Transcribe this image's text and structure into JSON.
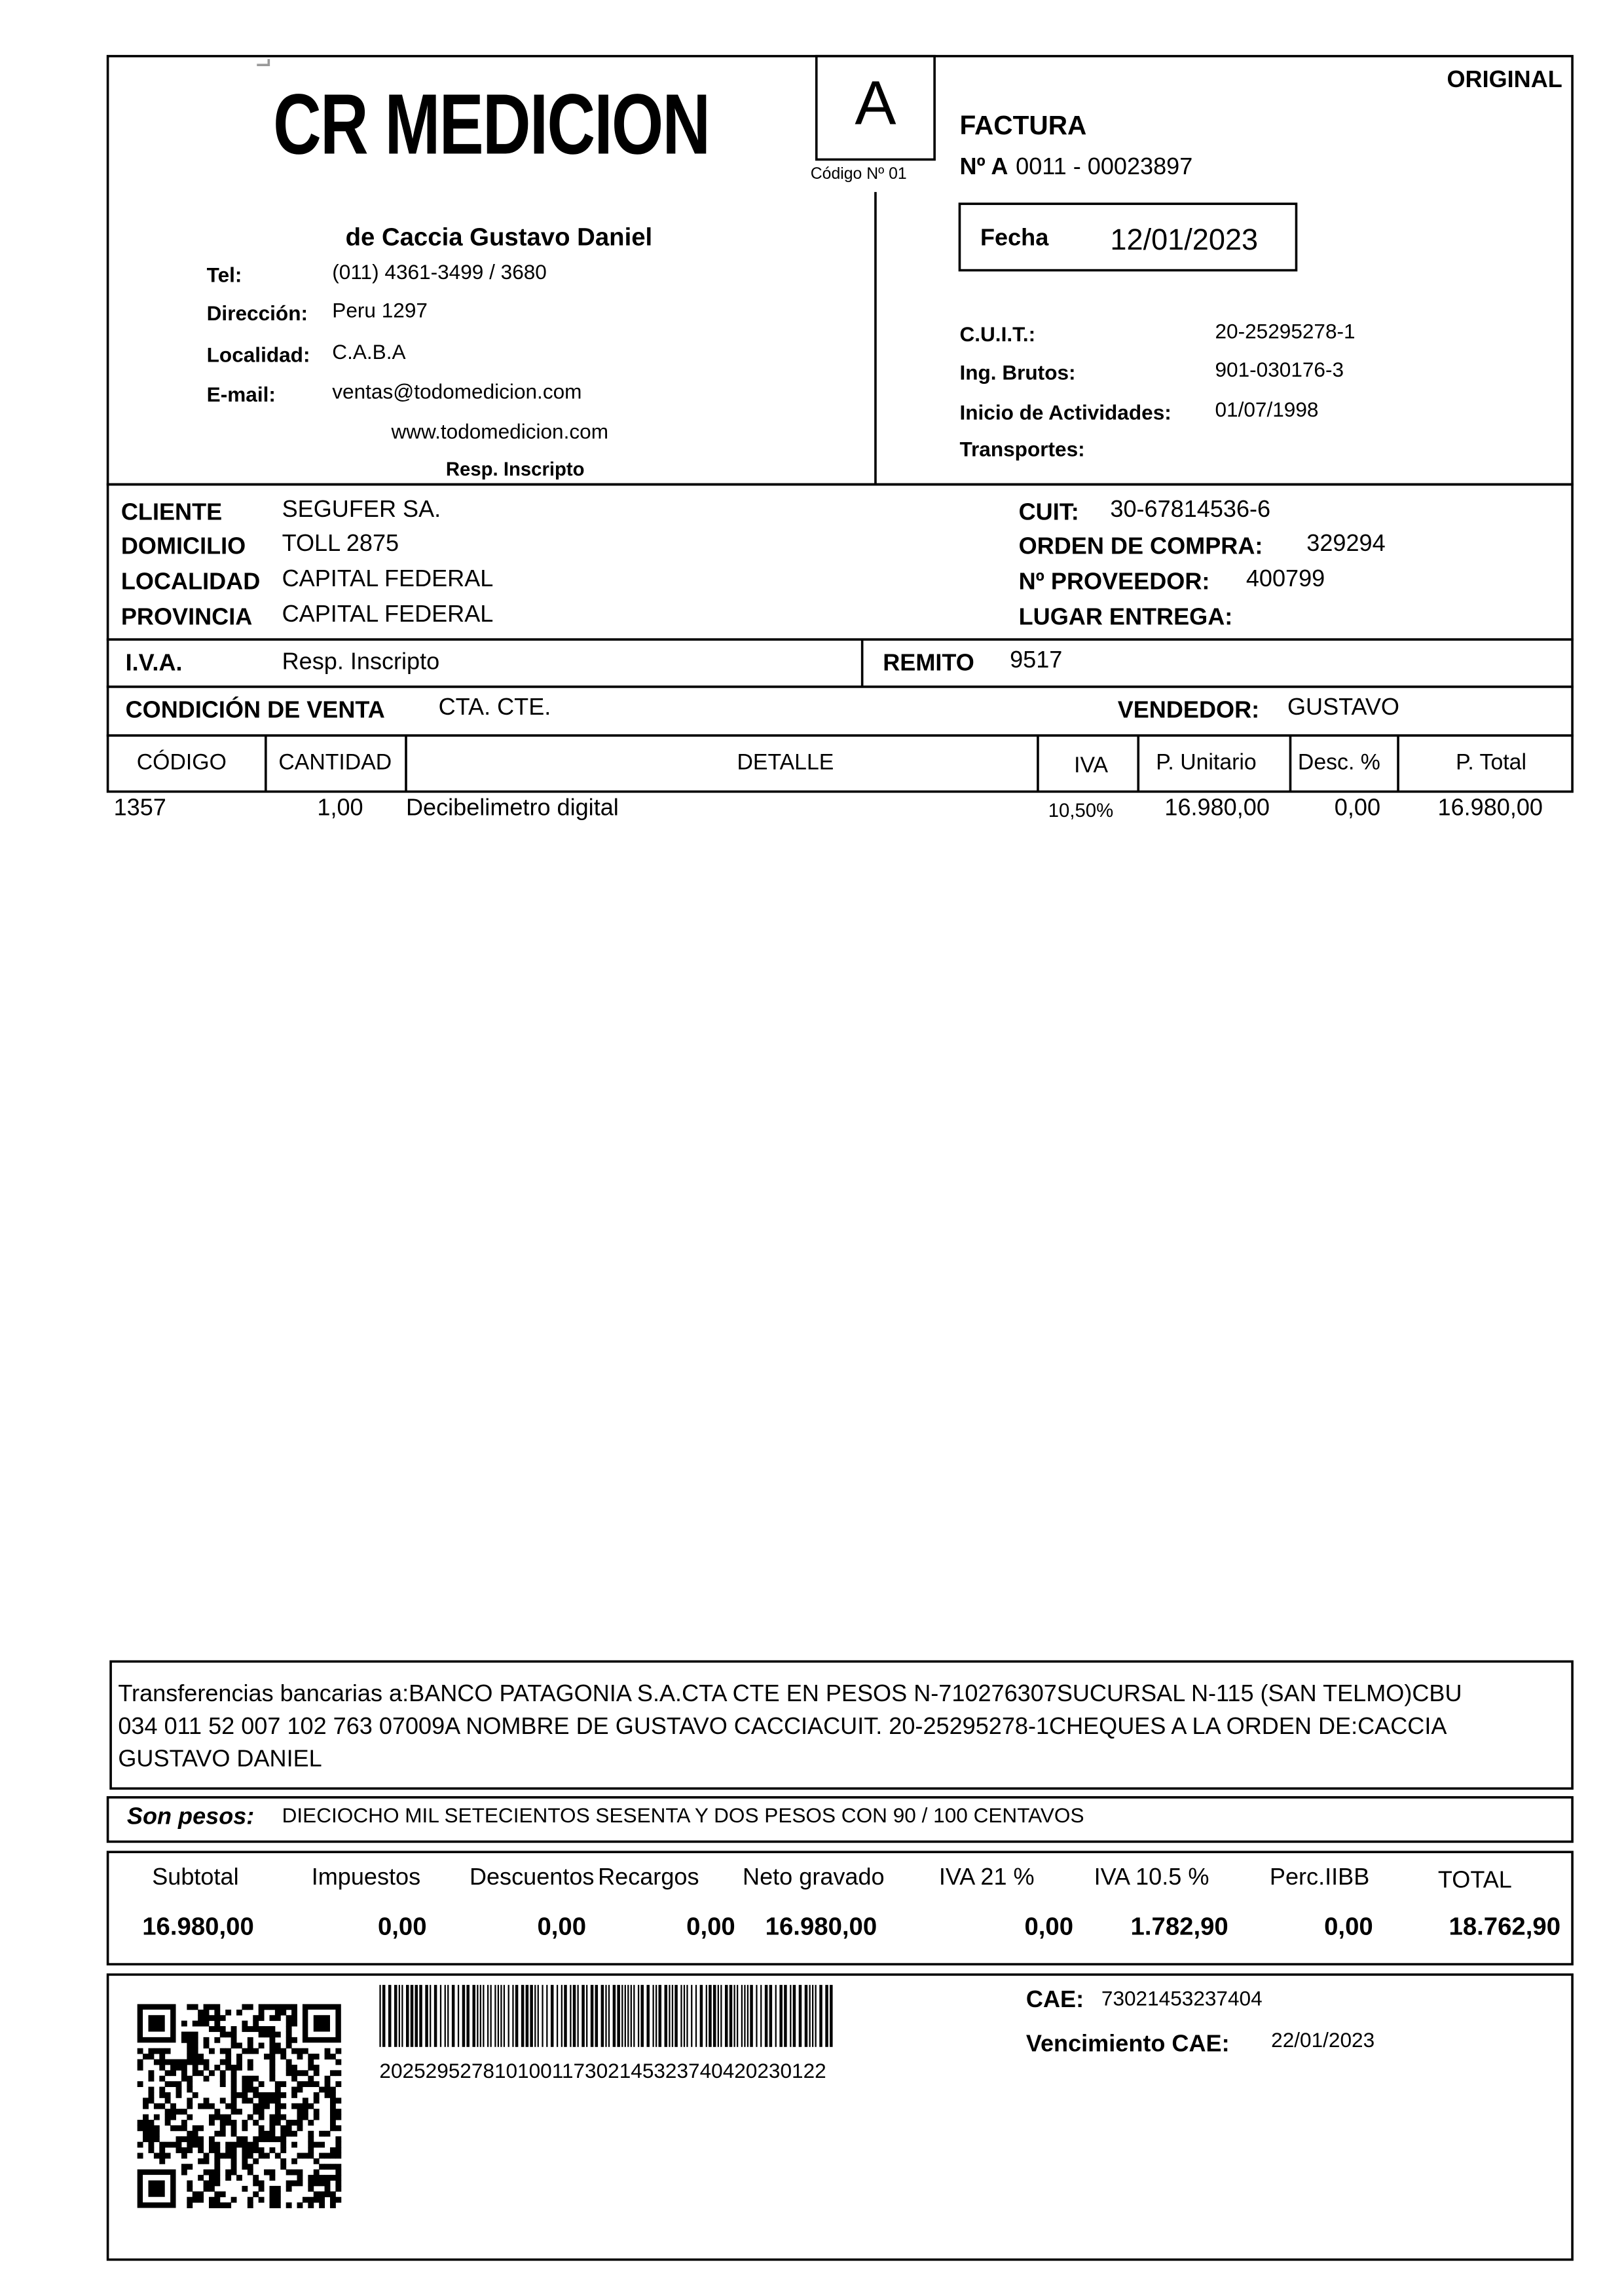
{
  "header": {
    "logo": "CR MEDICION",
    "letter": "A",
    "code": "Código Nº 01",
    "copy": "ORIGINAL",
    "doc_type": "FACTURA",
    "number_label": "Nº A",
    "number": "0011 - 00023897",
    "date_label": "Fecha",
    "date": "12/01/2023",
    "owner": "de Caccia Gustavo Daniel",
    "contact": [
      {
        "label": "Tel:",
        "value": "(011) 4361-3499 / 3680"
      },
      {
        "label": "Dirección:",
        "value": "Peru 1297"
      },
      {
        "label": "Localidad:",
        "value": "C.A.B.A"
      },
      {
        "label": "E-mail:",
        "value": "ventas@todomedicion.com"
      }
    ],
    "web": "www.todomedicion.com",
    "tax_status": "Resp. Inscripto",
    "fiscal": [
      {
        "label": "C.U.I.T.:",
        "value": "20-25295278-1"
      },
      {
        "label": "Ing. Brutos:",
        "value": "901-030176-3"
      },
      {
        "label": "Inicio de Actividades:",
        "value": "01/07/1998"
      },
      {
        "label": "Transportes:"
      }
    ]
  },
  "client": {
    "left": [
      {
        "label": "CLIENTE",
        "value": "SEGUFER SA."
      },
      {
        "label": "DOMICILIO",
        "value": "TOLL 2875"
      },
      {
        "label": "LOCALIDAD",
        "value": "CAPITAL FEDERAL"
      },
      {
        "label": "PROVINCIA",
        "value": "CAPITAL FEDERAL"
      }
    ],
    "right": [
      {
        "label": "CUIT:",
        "value": "30-67814536-6"
      },
      {
        "label": "ORDEN DE COMPRA:",
        "value": "329294"
      },
      {
        "label": "Nº PROVEEDOR:",
        "value": "400799"
      },
      {
        "label": "LUGAR ENTREGA:"
      }
    ]
  },
  "iva": {
    "label": "I.V.A.",
    "value": "Resp. Inscripto"
  },
  "remito": {
    "label": "REMITO",
    "value": "9517"
  },
  "sale": {
    "condition_label": "CONDICIÓN DE VENTA",
    "condition": "CTA. CTE.",
    "seller_label": "VENDEDOR:",
    "seller": "GUSTAVO"
  },
  "table": {
    "columns": [
      "CÓDIGO",
      "CANTIDAD",
      "DETALLE",
      "IVA",
      "P. Unitario",
      "Desc. %",
      "P. Total"
    ],
    "rows": [
      [
        "1357",
        "1,00",
        "Decibelimetro digital",
        "10,50%",
        "16.980,00",
        "0,00",
        "16.980,00"
      ]
    ]
  },
  "bank_note": "Transferencias bancarias a:BANCO PATAGONIA S.A.CTA CTE EN PESOS N-710276307SUCURSAL N-115 (SAN TELMO)CBU  034 011 52 007 102 763 07009A NOMBRE DE GUSTAVO CACCIACUIT. 20-25295278-1CHEQUES A LA ORDEN DE:CACCIA GUSTAVO DANIEL",
  "amount_words": {
    "label": "Son pesos:",
    "value": "DIECIOCHO MIL SETECIENTOS SESENTA Y DOS PESOS CON 90 / 100 CENTAVOS"
  },
  "totals": {
    "labels": [
      "Subtotal",
      "Impuestos",
      "Descuentos",
      "Recargos",
      "Neto gravado",
      "IVA 21 %",
      "IVA 10.5 %",
      "Perc.IIBB",
      "TOTAL"
    ],
    "values": [
      "16.980,00",
      "0,00",
      "0,00",
      "0,00",
      "16.980,00",
      "0,00",
      "1.782,90",
      "0,00",
      "18.762,90"
    ]
  },
  "cae": {
    "label": "CAE:",
    "value": "73021453237404",
    "due_label": "Vencimiento CAE:",
    "due": "22/01/2023",
    "barcode": "202529527810100117302145323740420230122"
  }
}
